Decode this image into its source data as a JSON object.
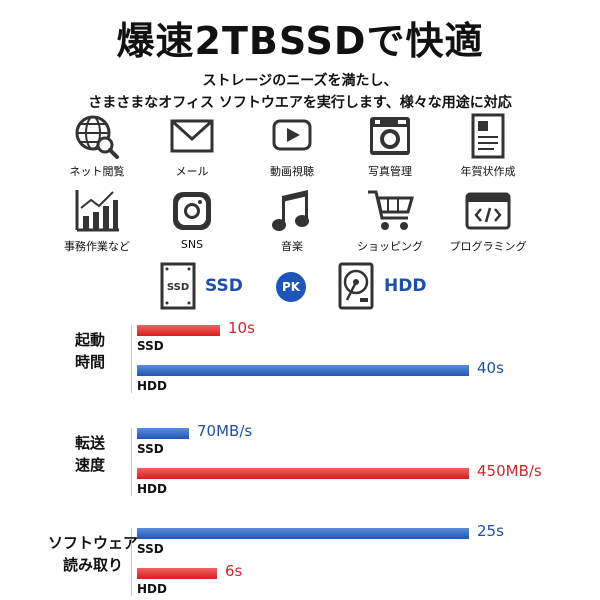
{
  "headline": "爆速2TBSSDで快適",
  "subtitle_lines": [
    "ストレージのニーズを満たし、",
    "さまさまなオフィス ソフトウエアを実行します、様々な用途に対応"
  ],
  "apps": [
    {
      "label": "ネット閲覧",
      "icon": "globe-search-icon"
    },
    {
      "label": "メール",
      "icon": "mail-icon"
    },
    {
      "label": "動画視聴",
      "icon": "video-play-icon"
    },
    {
      "label": "写真管理",
      "icon": "camera-icon"
    },
    {
      "label": "年賀状作成",
      "icon": "document-icon"
    },
    {
      "label": "事務作業など",
      "icon": "bar-chart-icon"
    },
    {
      "label": "SNS",
      "icon": "instagram-icon"
    },
    {
      "label": "音楽",
      "icon": "music-note-icon"
    },
    {
      "label": "ショッピング",
      "icon": "shopping-cart-icon"
    },
    {
      "label": "プログラミング",
      "icon": "code-window-icon"
    }
  ],
  "compare": {
    "left": "SSD",
    "badge": "PK",
    "right": "HDD",
    "ssd_chip_label": "SSD"
  },
  "colors": {
    "ssd": "#d71e1e",
    "hdd": "#1f58b5"
  },
  "chart_data": {
    "type": "bar",
    "groups": [
      {
        "label_lines": [
          "起動",
          "時間"
        ],
        "bars": [
          {
            "name": "SSD",
            "value": 10,
            "value_label": "10s",
            "color": "red"
          },
          {
            "name": "HDD",
            "value": 40,
            "value_label": "40s",
            "color": "blue"
          }
        ]
      },
      {
        "label_lines": [
          "転送",
          "速度"
        ],
        "bars": [
          {
            "name": "SSD",
            "value": 70,
            "value_label": "70MB/s",
            "color": "blue"
          },
          {
            "name": "HDD",
            "value": 450,
            "value_label": "450MB/s",
            "color": "red"
          }
        ]
      },
      {
        "label_lines": [
          "ソフトウェア",
          "読み取り"
        ],
        "bars": [
          {
            "name": "SSD",
            "value": 25,
            "value_label": "25s",
            "color": "blue"
          },
          {
            "name": "HDD",
            "value": 6,
            "value_label": "6s",
            "color": "red"
          }
        ]
      }
    ]
  }
}
